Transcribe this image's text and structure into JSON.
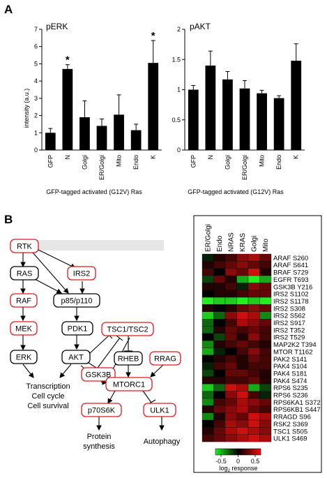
{
  "panel_labels": {
    "a": "A",
    "b": "B"
  },
  "charts": {
    "y_axis_label": "intensity (a.u.)",
    "x_axis_label": "GFP-tagged activated (G12V) Ras",
    "significance_mark": "*"
  },
  "pathway": {
    "nodes": [
      {
        "id": "rtk",
        "label": "RTK",
        "highlighted": true
      },
      {
        "id": "ras",
        "label": "RAS",
        "highlighted": false
      },
      {
        "id": "irs2",
        "label": "IRS2",
        "highlighted": true
      },
      {
        "id": "raf",
        "label": "RAF",
        "highlighted": true
      },
      {
        "id": "p85",
        "label": "p85/p110",
        "highlighted": false
      },
      {
        "id": "mek",
        "label": "MEK",
        "highlighted": true
      },
      {
        "id": "pdk1",
        "label": "PDK1",
        "highlighted": false
      },
      {
        "id": "tsc",
        "label": "TSC1/TSC2",
        "highlighted": true
      },
      {
        "id": "erk",
        "label": "ERK",
        "highlighted": false
      },
      {
        "id": "akt",
        "label": "AKT",
        "highlighted": false
      },
      {
        "id": "rheb",
        "label": "RHEB",
        "highlighted": false
      },
      {
        "id": "rrag",
        "label": "RRAG",
        "highlighted": true
      },
      {
        "id": "gsk3b",
        "label": "GSK3B",
        "highlighted": true
      },
      {
        "id": "mtorc1",
        "label": "MTORC1",
        "highlighted": true
      },
      {
        "id": "p70s6k",
        "label": "p70S6K",
        "highlighted": true
      },
      {
        "id": "ulk1",
        "label": "ULK1",
        "highlighted": true
      }
    ],
    "outcomes": {
      "transcription": [
        "Transcription",
        "Cell cycle",
        "Cell survival"
      ],
      "protein": [
        "Protein",
        "synthesis"
      ],
      "autophagy": [
        "Autophagy"
      ]
    }
  },
  "colors": {
    "bar": "#000000",
    "node_highlight": "#e0191f",
    "node_normal": "#000000",
    "heat_low": "#22ee22",
    "heat_mid": "#000000",
    "heat_high": "#ee1111"
  },
  "chart_data": [
    {
      "type": "bar",
      "title": "pERK",
      "categories": [
        "GFP",
        "N",
        "Golgi",
        "ER/Golgi",
        "Mito",
        "Endo",
        "K"
      ],
      "values": [
        1.0,
        4.7,
        1.9,
        1.4,
        2.05,
        1.15,
        5.05
      ],
      "errors": [
        0.25,
        0.25,
        0.95,
        0.4,
        1.15,
        0.35,
        1.3
      ],
      "significant": [
        false,
        true,
        false,
        false,
        false,
        false,
        true
      ],
      "ylabel": "intensity (a.u.)",
      "xlabel": "GFP-tagged activated (G12V) Ras",
      "ylim": [
        0,
        7
      ],
      "yticks": [
        0,
        1,
        2,
        3,
        4,
        5,
        6,
        7
      ]
    },
    {
      "type": "bar",
      "title": "pAKT",
      "categories": [
        "GFP",
        "N",
        "Golgi",
        "ER/Golgi",
        "Mito",
        "Endo",
        "K"
      ],
      "values": [
        1.0,
        1.4,
        1.17,
        1.02,
        0.94,
        0.86,
        1.48
      ],
      "errors": [
        0.07,
        0.24,
        0.13,
        0.13,
        0.05,
        0.04,
        0.28
      ],
      "significant": [
        false,
        false,
        false,
        false,
        false,
        false,
        false
      ],
      "ylabel": "",
      "xlabel": "GFP-tagged activated (G12V) Ras",
      "ylim": [
        0,
        2
      ],
      "yticks": [
        0,
        0.5,
        1,
        1.5,
        2
      ]
    },
    {
      "type": "heatmap",
      "columns": [
        "ER/Golgi",
        "Endo",
        "NRAS",
        "KRAS",
        "Golgi",
        "Mito"
      ],
      "rows": [
        "ARAF S260",
        "ARAF S641",
        "BRAF S729",
        "EGFR T693",
        "GSK3B Y216",
        "IRS2 S1102",
        "IRS2 S1178",
        "IRS2 S308",
        "IRS2 S562",
        "IRS2 S917",
        "IRS2 T352",
        "IRS2 T529",
        "MAP2K2 T394",
        "MTOR T1162",
        "PAK2 S141",
        "PAK4 S104",
        "PAK4 S181",
        "PAK4 S474",
        "RPS6 S235",
        "RPS6 S236",
        "RPS6KA1 S372",
        "RPS6KB1 S447",
        "RRAGD S96",
        "RSK2 S369",
        "TSC1 S505",
        "ULK1 S469"
      ],
      "values": [
        [
          -0.1,
          0.1,
          0.2,
          0.4,
          0.5,
          0.3
        ],
        [
          0.1,
          0.2,
          0.3,
          0.4,
          0.3,
          0.2
        ],
        [
          0.2,
          0.0,
          0.4,
          0.3,
          0.6,
          0.1
        ],
        [
          -0.2,
          0.3,
          0.1,
          -0.5,
          -0.7,
          -0.5
        ],
        [
          0.1,
          0.1,
          0.2,
          -0.1,
          0.4,
          0.3
        ],
        [
          0.0,
          0.1,
          0.1,
          0.2,
          0.3,
          0.3
        ],
        [
          -0.7,
          -0.6,
          -0.6,
          -0.7,
          -0.6,
          -0.7
        ],
        [
          0.1,
          0.0,
          0.1,
          0.3,
          0.4,
          0.3
        ],
        [
          -0.6,
          -0.3,
          0.4,
          0.6,
          0.5,
          -0.4
        ],
        [
          -0.3,
          0.0,
          0.2,
          0.5,
          0.4,
          0.3
        ],
        [
          -0.3,
          0.1,
          0.3,
          0.2,
          0.3,
          0.2
        ],
        [
          0.0,
          -0.2,
          0.3,
          0.1,
          0.4,
          0.2
        ],
        [
          -0.4,
          0.1,
          0.2,
          0.3,
          0.2,
          0.1
        ],
        [
          -0.5,
          -0.1,
          0.0,
          0.2,
          0.4,
          0.2
        ],
        [
          0.0,
          0.1,
          0.2,
          0.1,
          0.3,
          0.2
        ],
        [
          -0.1,
          0.2,
          0.3,
          0.1,
          0.2,
          0.2
        ],
        [
          -0.2,
          0.0,
          0.3,
          0.3,
          0.2,
          0.1
        ],
        [
          0.1,
          0.1,
          0.2,
          0.2,
          0.3,
          0.1
        ],
        [
          -0.6,
          -0.3,
          0.6,
          0.5,
          -0.5,
          -0.2
        ],
        [
          -0.3,
          0.0,
          0.4,
          0.6,
          0.2,
          -0.1
        ],
        [
          -0.4,
          0.2,
          0.3,
          0.5,
          0.4,
          0.3
        ],
        [
          0.1,
          0.3,
          0.4,
          0.5,
          0.3,
          0.2
        ],
        [
          -0.4,
          0.1,
          0.4,
          0.3,
          0.6,
          0.5
        ],
        [
          0.0,
          0.2,
          0.5,
          0.4,
          0.6,
          0.4
        ],
        [
          0.1,
          0.3,
          0.5,
          0.6,
          0.5,
          0.4
        ],
        [
          0.2,
          0.3,
          0.4,
          0.5,
          0.6,
          0.5
        ]
      ],
      "colorbar": {
        "ticks": [
          "-0.5",
          "0",
          "0.5"
        ],
        "label": "log",
        "label_sub": "2",
        "label_tail": " response",
        "range": [
          -0.7,
          0.7
        ]
      }
    }
  ]
}
